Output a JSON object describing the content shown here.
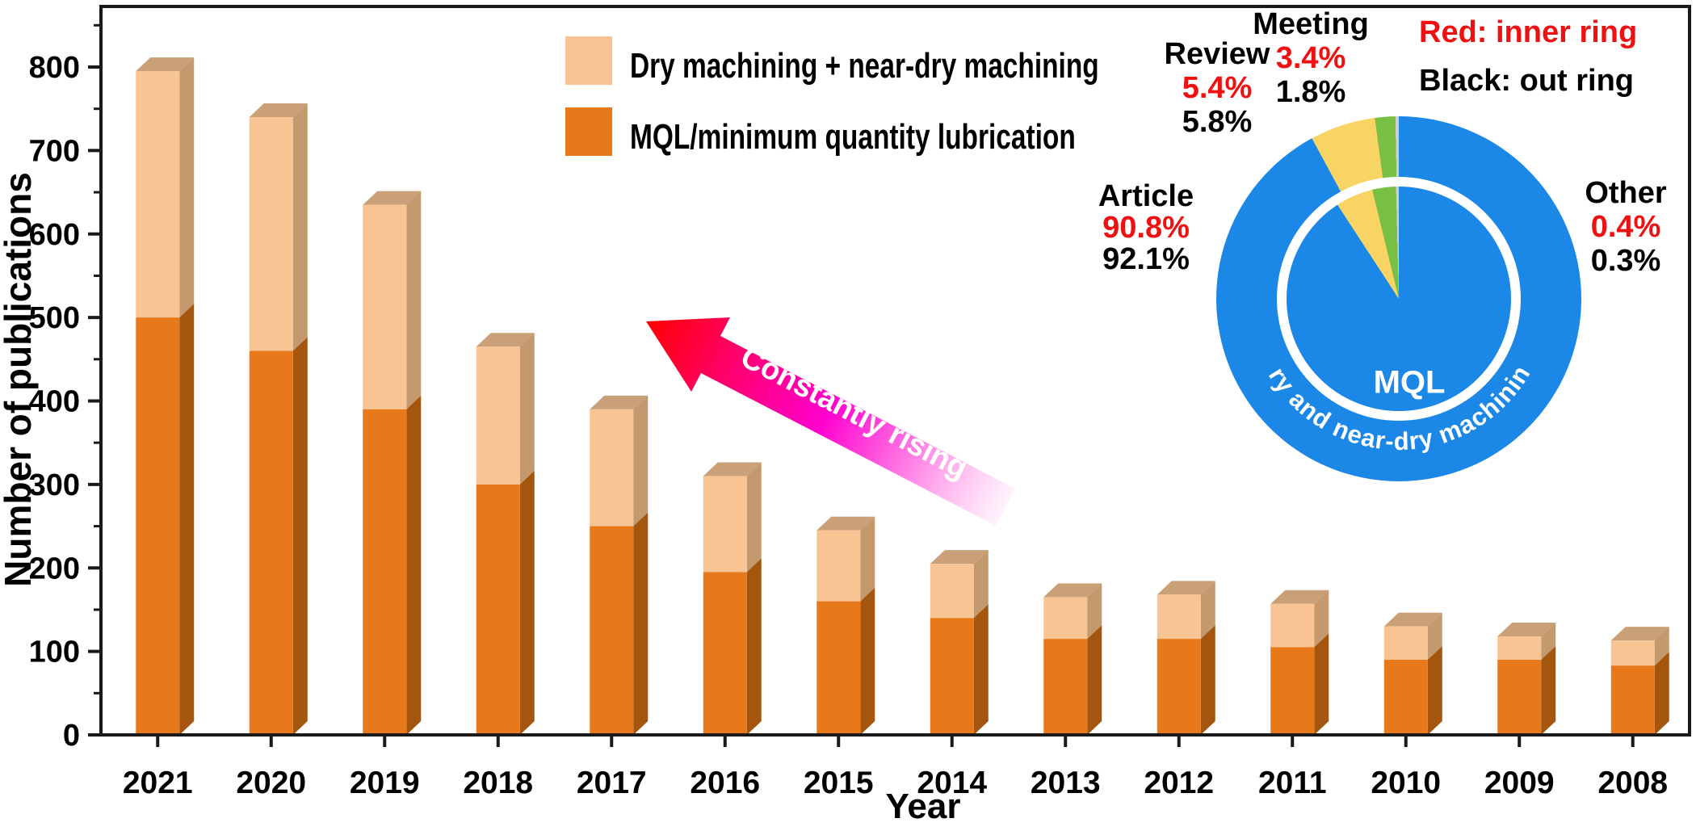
{
  "chart_data": {
    "type": "bar",
    "stacked": true,
    "threed": true,
    "categories": [
      "2021",
      "2020",
      "2019",
      "2018",
      "2017",
      "2016",
      "2015",
      "2014",
      "2013",
      "2012",
      "2011",
      "2010",
      "2009",
      "2008"
    ],
    "series": [
      {
        "name": "MQL/minimum quantity lubrication",
        "color": "#E8791B",
        "side_color": "#A4560E",
        "values": [
          500,
          460,
          390,
          300,
          250,
          195,
          160,
          140,
          115,
          115,
          105,
          90,
          90,
          83
        ]
      },
      {
        "name": "Dry machining + near-dry machining",
        "color": "#F8C494",
        "side_color": "#C4996D",
        "top_color": "#C9A078",
        "values": [
          295,
          280,
          245,
          165,
          140,
          115,
          85,
          65,
          50,
          53,
          52,
          40,
          28,
          30
        ]
      }
    ],
    "totals": [
      795,
      740,
      635,
      465,
      390,
      310,
      245,
      205,
      165,
      168,
      157,
      130,
      118,
      113
    ],
    "title": "",
    "xlabel": "Year",
    "ylabel": "Number of publications",
    "ylim": [
      0,
      872
    ],
    "ytick_step": 100,
    "yminor_step": 50,
    "grid": false,
    "legend_position": "upper-left-inside"
  },
  "legend": {
    "items": [
      {
        "label": "Dry machining + near-dry machining",
        "color": "#F8C494"
      },
      {
        "label": "MQL/minimum quantity lubrication",
        "color": "#E8791B"
      }
    ]
  },
  "annotation_arrow": {
    "text": "Constantly rising",
    "tip_color": "#FF0000",
    "mid_color": "#FF00CE",
    "tail_color": "#FFEFFB"
  },
  "pie": {
    "legend_red": "Red: inner ring",
    "legend_black": "Black: out ring",
    "inner_label": "MQL",
    "ring_label": "Dry and near-dry machining",
    "white_ring_color": "#FFFFFF",
    "slices": [
      {
        "name": "Article",
        "inner_pct": 90.8,
        "outer_pct": 92.1,
        "label_inner": "90.8%",
        "label_outer": "92.1%",
        "color": "#1B87E6"
      },
      {
        "name": "Review",
        "inner_pct": 5.4,
        "outer_pct": 5.8,
        "label_inner": "5.4%",
        "label_outer": "5.8%",
        "color": "#F8D464"
      },
      {
        "name": "Meeting",
        "inner_pct": 3.4,
        "outer_pct": 1.8,
        "label_inner": "3.4%",
        "label_outer": "1.8%",
        "color": "#77C044"
      },
      {
        "name": "Other",
        "inner_pct": 0.4,
        "outer_pct": 0.3,
        "label_inner": "0.4%",
        "label_outer": "0.3%",
        "color": "#CFCFCF"
      }
    ]
  },
  "colors": {
    "spine": "#1A1A1A",
    "text": "#000000",
    "red_label": "#ED1111",
    "background": "#FFFFFF"
  }
}
